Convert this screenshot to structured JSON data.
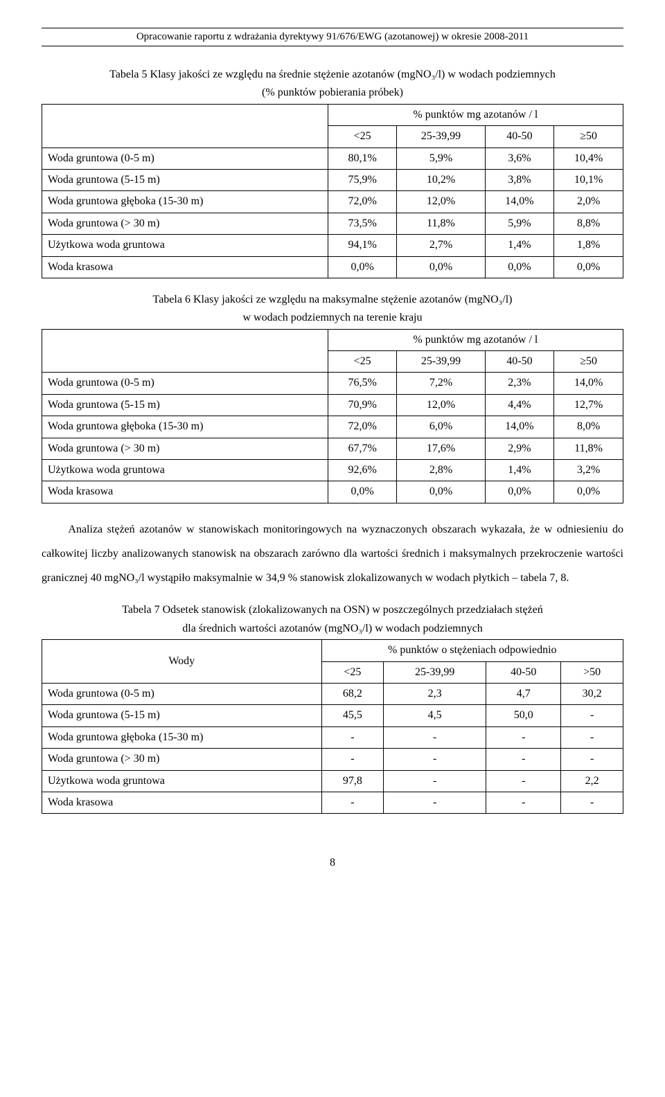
{
  "header": "Opracowanie raportu z wdrażania dyrektywy 91/676/EWG (azotanowej) w okresie 2008-2011",
  "table5": {
    "caption_l1": "Tabela 5 Klasy jakości ze względu na średnie stężenie azotanów (mgNO₃/l) w wodach podziemnych",
    "caption_l2": "(% punktów pobierania próbek)",
    "super_header": "% punktów mg azotanów / l",
    "cols": [
      "<25",
      "25-39,99",
      "40-50",
      "≥50"
    ],
    "rows": [
      {
        "label": "Woda gruntowa (0-5 m)",
        "v": [
          "80,1%",
          "5,9%",
          "3,6%",
          "10,4%"
        ]
      },
      {
        "label": "Woda gruntowa (5-15 m)",
        "v": [
          "75,9%",
          "10,2%",
          "3,8%",
          "10,1%"
        ]
      },
      {
        "label": "Woda gruntowa głęboka (15-30 m)",
        "v": [
          "72,0%",
          "12,0%",
          "14,0%",
          "2,0%"
        ]
      },
      {
        "label": "Woda gruntowa (> 30 m)",
        "v": [
          "73,5%",
          "11,8%",
          "5,9%",
          "8,8%"
        ]
      },
      {
        "label": "Użytkowa woda gruntowa",
        "v": [
          "94,1%",
          "2,7%",
          "1,4%",
          "1,8%"
        ]
      },
      {
        "label": "Woda krasowa",
        "v": [
          "0,0%",
          "0,0%",
          "0,0%",
          "0,0%"
        ]
      }
    ]
  },
  "table6": {
    "caption_l1": "Tabela 6 Klasy jakości ze względu na maksymalne stężenie azotanów (mgNO₃/l)",
    "caption_l2": "w wodach podziemnych na terenie kraju",
    "super_header": "% punktów mg azotanów / l",
    "cols": [
      "<25",
      "25-39,99",
      "40-50",
      "≥50"
    ],
    "rows": [
      {
        "label": "Woda gruntowa (0-5 m)",
        "v": [
          "76,5%",
          "7,2%",
          "2,3%",
          "14,0%"
        ]
      },
      {
        "label": "Woda gruntowa (5-15 m)",
        "v": [
          "70,9%",
          "12,0%",
          "4,4%",
          "12,7%"
        ]
      },
      {
        "label": "Woda gruntowa głęboka (15-30 m)",
        "v": [
          "72,0%",
          "6,0%",
          "14,0%",
          "8,0%"
        ]
      },
      {
        "label": "Woda gruntowa (> 30 m)",
        "v": [
          "67,7%",
          "17,6%",
          "2,9%",
          "11,8%"
        ]
      },
      {
        "label": "Użytkowa woda gruntowa",
        "v": [
          "92,6%",
          "2,8%",
          "1,4%",
          "3,2%"
        ]
      },
      {
        "label": "Woda krasowa",
        "v": [
          "0,0%",
          "0,0%",
          "0,0%",
          "0,0%"
        ]
      }
    ]
  },
  "paragraph": "Analiza stężeń azotanów w stanowiskach monitoringowych na wyznaczonych obszarach wykazała, że w odniesieniu do całkowitej liczby analizowanych stanowisk na obszarach zarówno dla wartości średnich i maksymalnych przekroczenie wartości granicznej 40 mgNO₃/l wystąpiło maksymalnie w 34,9 % stanowisk zlokalizowanych w wodach płytkich – tabela 7, 8.",
  "table7": {
    "caption_l1": "Tabela 7 Odsetek stanowisk (zlokalizowanych na OSN) w poszczególnych przedziałach stężeń",
    "caption_l2": "dla średnich wartości azotanów (mgNO₃/l) w wodach podziemnych",
    "row_header": "Wody",
    "super_header": "% punktów o stężeniach odpowiednio",
    "cols": [
      "<25",
      "25-39,99",
      "40-50",
      ">50"
    ],
    "rows": [
      {
        "label": "Woda gruntowa (0-5 m)",
        "v": [
          "68,2",
          "2,3",
          "4,7",
          "30,2"
        ]
      },
      {
        "label": "Woda gruntowa (5-15 m)",
        "v": [
          "45,5",
          "4,5",
          "50,0",
          "-"
        ]
      },
      {
        "label": "Woda gruntowa głęboka (15-30 m)",
        "v": [
          "-",
          "-",
          "-",
          "-"
        ]
      },
      {
        "label": "Woda gruntowa (> 30 m)",
        "v": [
          "-",
          "-",
          "-",
          "-"
        ]
      },
      {
        "label": "Użytkowa woda gruntowa",
        "v": [
          "97,8",
          "-",
          "-",
          "2,2"
        ]
      },
      {
        "label": "Woda krasowa",
        "v": [
          "-",
          "-",
          "-",
          "-"
        ]
      }
    ]
  },
  "page_number": "8"
}
